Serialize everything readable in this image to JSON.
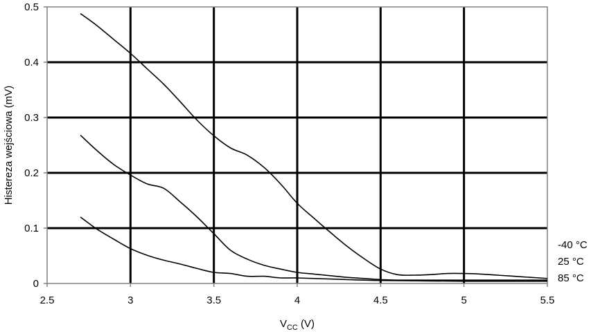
{
  "chart_data": {
    "type": "line",
    "xlabel": "V",
    "xlabel_sub": "CC",
    "xlabel_suffix": " (V)",
    "ylabel": "Histereza wejściowa (mV)",
    "xlim": [
      2.5,
      5.5
    ],
    "ylim": [
      0,
      0.5
    ],
    "x_ticks": [
      "2.5",
      "3",
      "3.5",
      "4",
      "4.5",
      "5",
      "5.5"
    ],
    "y_ticks": [
      "0",
      "0.1",
      "0.2",
      "0.3",
      "0.4",
      "0.5"
    ],
    "grid": true,
    "legend_placement": "right",
    "series": [
      {
        "name": "-40 °C",
        "x": [
          2.7,
          2.8,
          2.9,
          3.0,
          3.1,
          3.2,
          3.3,
          3.4,
          3.5,
          3.6,
          3.7,
          3.8,
          3.9,
          4.0,
          4.1,
          4.2,
          4.3,
          4.4,
          4.5,
          4.6,
          4.7,
          4.8,
          4.9,
          5.0,
          5.1,
          5.2,
          5.3,
          5.4,
          5.5
        ],
        "y": [
          0.488,
          0.466,
          0.441,
          0.416,
          0.388,
          0.36,
          0.328,
          0.295,
          0.267,
          0.245,
          0.232,
          0.21,
          0.18,
          0.145,
          0.118,
          0.092,
          0.067,
          0.045,
          0.026,
          0.016,
          0.015,
          0.016,
          0.018,
          0.018,
          0.017,
          0.015,
          0.013,
          0.011,
          0.009
        ]
      },
      {
        "name": "25 °C",
        "x": [
          2.7,
          2.8,
          2.9,
          3.0,
          3.1,
          3.2,
          3.3,
          3.4,
          3.5,
          3.6,
          3.7,
          3.8,
          3.9,
          4.0,
          4.1,
          4.2,
          4.3,
          4.4,
          4.5,
          4.6,
          4.8,
          5.0,
          5.2,
          5.5
        ],
        "y": [
          0.268,
          0.24,
          0.215,
          0.196,
          0.18,
          0.172,
          0.147,
          0.12,
          0.09,
          0.06,
          0.044,
          0.033,
          0.026,
          0.02,
          0.017,
          0.014,
          0.011,
          0.009,
          0.007,
          0.006,
          0.006,
          0.006,
          0.006,
          0.006
        ]
      },
      {
        "name": "85 °C",
        "x": [
          2.7,
          2.8,
          2.9,
          3.0,
          3.1,
          3.2,
          3.3,
          3.4,
          3.5,
          3.6,
          3.7,
          3.8,
          3.9,
          4.0,
          4.2,
          4.4,
          4.6,
          5.0,
          5.5
        ],
        "y": [
          0.12,
          0.098,
          0.08,
          0.063,
          0.051,
          0.042,
          0.035,
          0.027,
          0.02,
          0.018,
          0.013,
          0.013,
          0.01,
          0.01,
          0.008,
          0.006,
          0.005,
          0.004,
          0.004
        ]
      }
    ]
  }
}
